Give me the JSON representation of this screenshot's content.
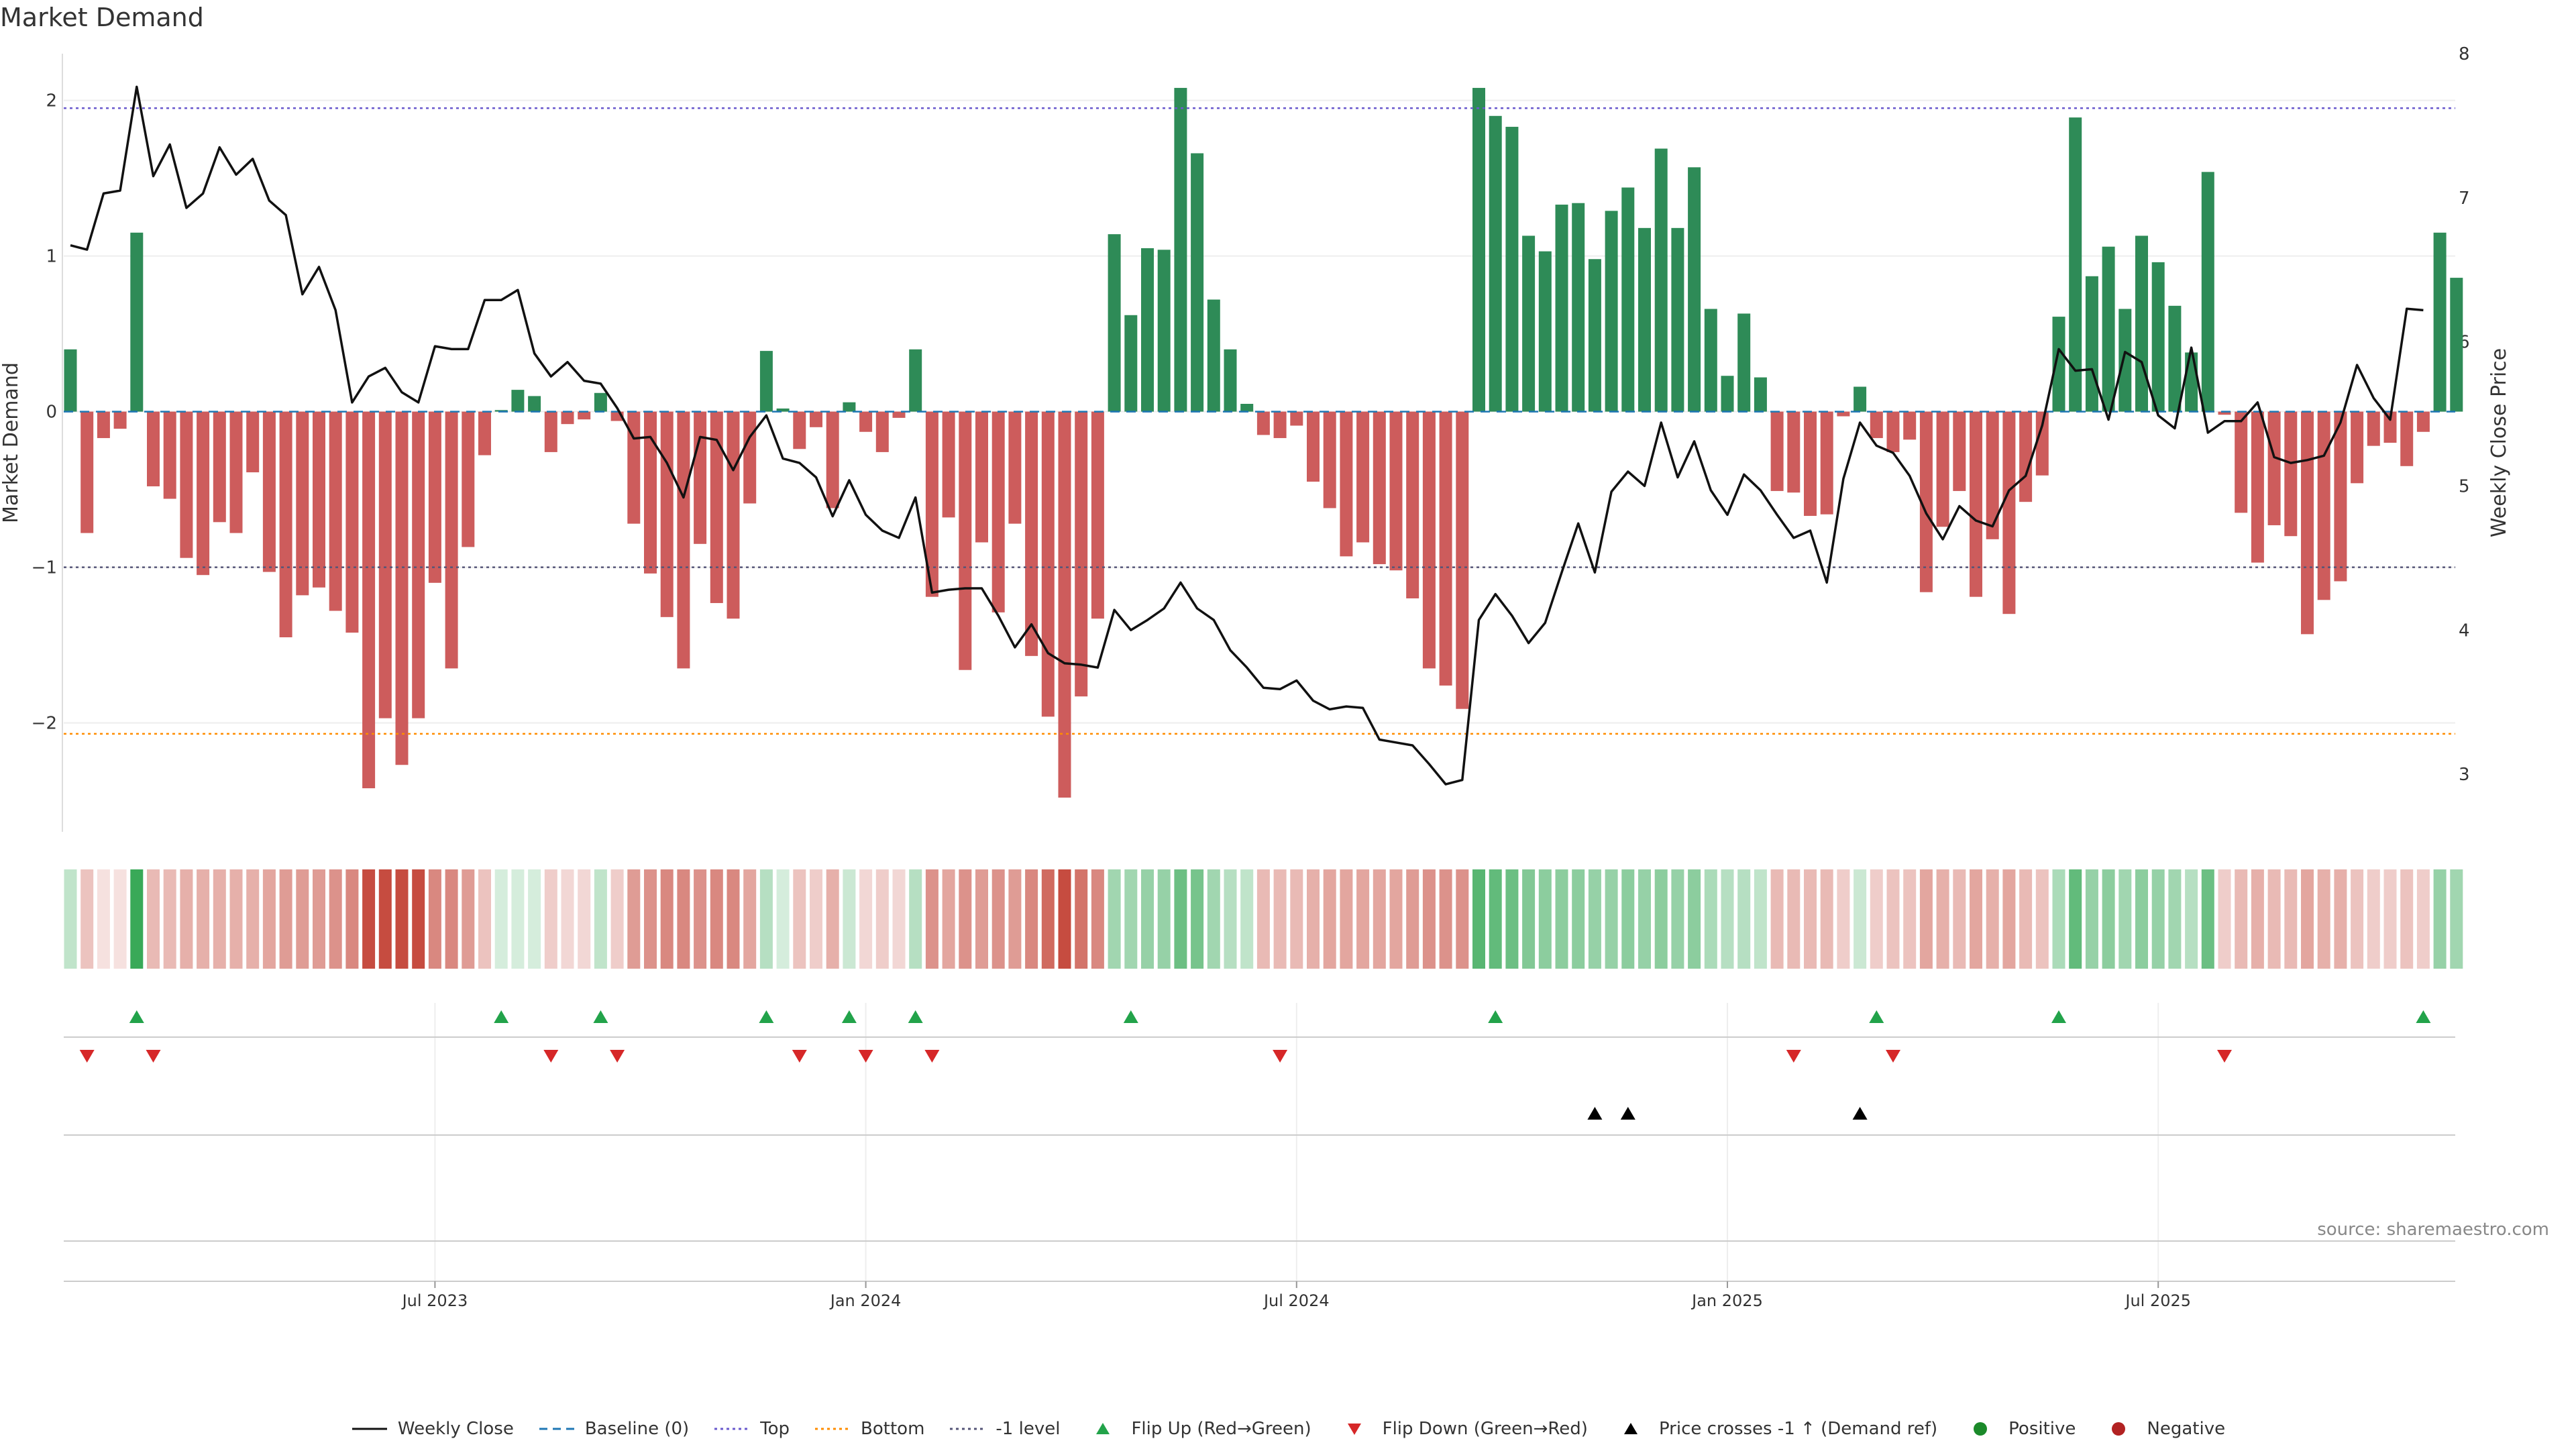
{
  "title": "Market Demand",
  "source": "source: sharemaestro.com",
  "colors": {
    "positive": "#2e8b57",
    "negative": "#cd5c5c",
    "price": "#111111",
    "top": "#6a5acd",
    "bottom": "#ff8c00",
    "neg1": "#555577",
    "baseline": "#1f77b4",
    "flip_up": "#22a34a",
    "flip_down": "#d62728",
    "cross": "#000000",
    "pos_dot": "#1b8a2a",
    "neg_dot": "#b22222"
  },
  "chart_data": {
    "type": "bar",
    "title": "Market Demand",
    "ylabel": "Market Demand",
    "y2label": "Weekly Close Price",
    "ylim": [
      -2.7,
      2.3
    ],
    "y2lim": [
      2.6,
      8.0
    ],
    "yticks": [
      2,
      1,
      0,
      -1,
      -2
    ],
    "ytick_labels": [
      "2",
      "1",
      "0",
      "−1",
      "−2"
    ],
    "y2ticks": [
      8,
      7,
      6,
      5,
      4,
      3
    ],
    "levels": {
      "top": 1.95,
      "bottom": -2.07,
      "neg1": -1.0,
      "baseline": 0
    },
    "x_ticks": [
      {
        "week": 22,
        "label": "Jul 2023"
      },
      {
        "week": 48,
        "label": "Jan 2024"
      },
      {
        "week": 74,
        "label": "Jul 2024"
      },
      {
        "week": 100,
        "label": "Jan 2025"
      },
      {
        "week": 126,
        "label": "Jul 2025"
      }
    ],
    "demand": [
      0.4,
      -0.78,
      -0.17,
      -0.11,
      1.15,
      -0.48,
      -0.56,
      -0.94,
      -1.05,
      -0.71,
      -0.78,
      -0.39,
      -1.03,
      -1.45,
      -1.18,
      -1.13,
      -1.28,
      -1.42,
      -2.42,
      -1.97,
      -2.27,
      -1.97,
      -1.1,
      -1.65,
      -0.87,
      -0.28,
      0.01,
      0.14,
      0.1,
      -0.26,
      -0.08,
      -0.05,
      0.12,
      -0.06,
      -0.72,
      -1.04,
      -1.32,
      -1.65,
      -0.85,
      -1.23,
      -1.33,
      -0.59,
      0.39,
      0.02,
      -0.24,
      -0.1,
      -0.62,
      0.06,
      -0.13,
      -0.26,
      -0.04,
      0.4,
      -1.19,
      -0.68,
      -1.66,
      -0.84,
      -1.29,
      -0.72,
      -1.57,
      -1.96,
      -2.48,
      -1.83,
      -1.33,
      1.14,
      0.62,
      1.05,
      1.04,
      2.08,
      1.66,
      0.72,
      0.4,
      0.05,
      -0.15,
      -0.17,
      -0.09,
      -0.45,
      -0.62,
      -0.93,
      -0.84,
      -0.98,
      -1.02,
      -1.2,
      -1.65,
      -1.76,
      -1.91,
      2.08,
      1.9,
      1.83,
      1.13,
      1.03,
      1.33,
      1.34,
      0.98,
      1.29,
      1.44,
      1.18,
      1.69,
      1.18,
      1.57,
      0.66,
      0.23,
      0.63,
      0.22,
      -0.51,
      -0.52,
      -0.67,
      -0.66,
      -0.03,
      0.16,
      -0.17,
      -0.26,
      -0.18,
      -1.16,
      -0.74,
      -0.51,
      -1.19,
      -0.82,
      -1.3,
      -0.58,
      -0.41,
      0.61,
      1.89,
      0.87,
      1.06,
      0.66,
      1.13,
      0.96,
      0.68,
      0.38,
      1.54,
      -0.02,
      -0.65,
      -0.97,
      -0.73,
      -0.8,
      -1.43,
      -1.21,
      -1.09,
      -0.46,
      -0.22,
      -0.2,
      -0.35,
      -0.13,
      1.15,
      0.86
    ],
    "intensity": [
      0.3,
      0.3,
      0.15,
      0.15,
      0.95,
      0.35,
      0.35,
      0.4,
      0.4,
      0.4,
      0.4,
      0.4,
      0.45,
      0.5,
      0.5,
      0.5,
      0.55,
      0.6,
      0.9,
      0.9,
      0.9,
      0.9,
      0.6,
      0.6,
      0.5,
      0.3,
      0.2,
      0.2,
      0.2,
      0.25,
      0.2,
      0.2,
      0.3,
      0.25,
      0.5,
      0.55,
      0.6,
      0.6,
      0.55,
      0.6,
      0.6,
      0.45,
      0.35,
      0.2,
      0.3,
      0.25,
      0.4,
      0.25,
      0.2,
      0.25,
      0.2,
      0.35,
      0.55,
      0.45,
      0.55,
      0.5,
      0.55,
      0.5,
      0.6,
      0.75,
      0.9,
      0.7,
      0.6,
      0.45,
      0.45,
      0.5,
      0.5,
      0.7,
      0.65,
      0.45,
      0.35,
      0.3,
      0.35,
      0.35,
      0.35,
      0.4,
      0.45,
      0.45,
      0.45,
      0.45,
      0.45,
      0.5,
      0.55,
      0.55,
      0.55,
      0.8,
      0.75,
      0.7,
      0.6,
      0.55,
      0.55,
      0.55,
      0.5,
      0.5,
      0.55,
      0.5,
      0.55,
      0.5,
      0.55,
      0.4,
      0.35,
      0.35,
      0.3,
      0.35,
      0.35,
      0.35,
      0.35,
      0.25,
      0.25,
      0.25,
      0.3,
      0.3,
      0.45,
      0.4,
      0.35,
      0.45,
      0.4,
      0.45,
      0.35,
      0.3,
      0.4,
      0.75,
      0.5,
      0.55,
      0.45,
      0.55,
      0.5,
      0.45,
      0.35,
      0.7,
      0.25,
      0.35,
      0.4,
      0.35,
      0.35,
      0.45,
      0.4,
      0.4,
      0.3,
      0.25,
      0.25,
      0.3,
      0.25,
      0.5,
      0.45
    ],
    "price": [
      6.67,
      6.64,
      7.03,
      7.05,
      7.77,
      7.15,
      7.37,
      6.93,
      7.03,
      7.35,
      7.16,
      7.27,
      6.98,
      6.88,
      6.33,
      6.52,
      6.22,
      5.58,
      5.76,
      5.82,
      5.65,
      5.58,
      5.97,
      5.95,
      5.95,
      6.29,
      6.29,
      6.36,
      5.92,
      5.76,
      5.86,
      5.73,
      5.71,
      5.54,
      5.33,
      5.34,
      5.16,
      4.92,
      5.34,
      5.32,
      5.11,
      5.34,
      5.49,
      5.19,
      5.16,
      5.06,
      4.79,
      5.04,
      4.8,
      4.69,
      4.64,
      4.92,
      4.26,
      4.28,
      4.29,
      4.29,
      4.1,
      3.88,
      4.04,
      3.84,
      3.77,
      3.76,
      3.74,
      4.14,
      4.0,
      4.07,
      4.15,
      4.33,
      4.15,
      4.07,
      3.86,
      3.74,
      3.6,
      3.59,
      3.65,
      3.51,
      3.45,
      3.47,
      3.46,
      3.24,
      3.22,
      3.2,
      3.07,
      2.93,
      2.96,
      4.07,
      4.25,
      4.1,
      3.91,
      4.05,
      4.4,
      4.74,
      4.4,
      4.96,
      5.1,
      5.0,
      5.44,
      5.06,
      5.31,
      4.97,
      4.8,
      5.08,
      4.97,
      4.8,
      4.64,
      4.69,
      4.33,
      5.05,
      5.44,
      5.28,
      5.23,
      5.07,
      4.81,
      4.63,
      4.86,
      4.76,
      4.72,
      4.97,
      5.07,
      5.42,
      5.95,
      5.8,
      5.81,
      5.46,
      5.93,
      5.86,
      5.49,
      5.4,
      5.96,
      5.37,
      5.45,
      5.45,
      5.58,
      5.2,
      5.16,
      5.18,
      5.21,
      5.44,
      5.84,
      5.61,
      5.46,
      6.23,
      6.22
    ],
    "flip_up_weeks": [
      4,
      26,
      32,
      42,
      47,
      51,
      64,
      86,
      109,
      120,
      142
    ],
    "flip_down_weeks": [
      1,
      5,
      29,
      33,
      44,
      48,
      52,
      73,
      104,
      110,
      130
    ],
    "cross_weeks": [
      92,
      94,
      108
    ]
  },
  "legend": [
    {
      "key": "price",
      "label": "Weekly Close",
      "style": "line"
    },
    {
      "key": "baseline",
      "label": "Baseline (0)",
      "style": "dashed"
    },
    {
      "key": "top",
      "label": "Top",
      "style": "dotted"
    },
    {
      "key": "bottom",
      "label": "Bottom",
      "style": "dotted"
    },
    {
      "key": "neg1",
      "label": "-1 level",
      "style": "dotted"
    },
    {
      "key": "flip_up",
      "label": "Flip Up (Red→Green)",
      "style": "tri-up"
    },
    {
      "key": "flip_down",
      "label": "Flip Down (Green→Red)",
      "style": "tri-down"
    },
    {
      "key": "cross",
      "label": "Price crosses -1 ↑ (Demand ref)",
      "style": "tri-up"
    },
    {
      "key": "pos_dot",
      "label": "Positive",
      "style": "dot"
    },
    {
      "key": "neg_dot",
      "label": "Negative",
      "style": "dot"
    }
  ]
}
